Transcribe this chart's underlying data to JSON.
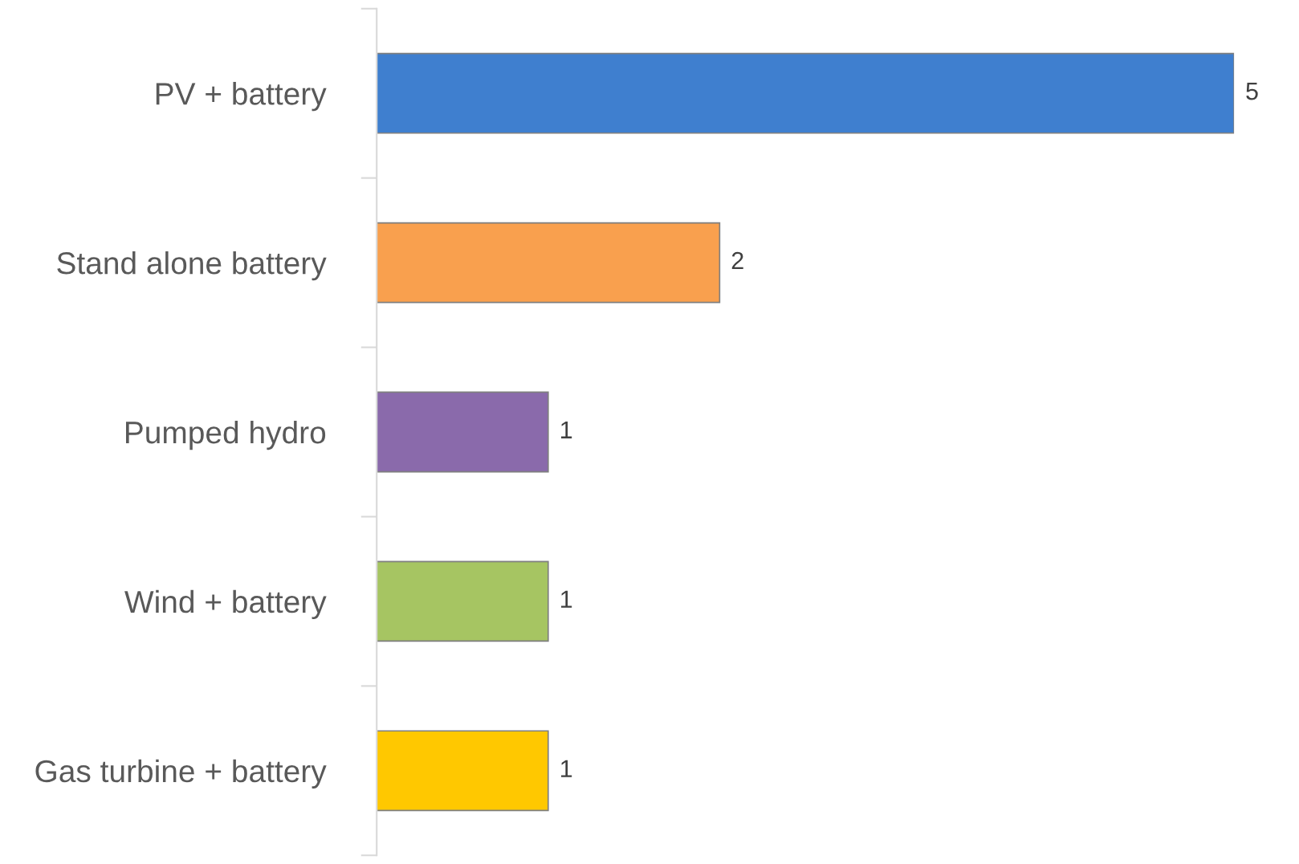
{
  "chart_data": {
    "type": "bar",
    "orientation": "horizontal",
    "categories": [
      "PV + battery",
      "Stand alone battery",
      "Pumped hydro",
      "Wind + battery",
      "Gas turbine + battery"
    ],
    "values": [
      5,
      2,
      1,
      1,
      1
    ],
    "colors": [
      "#3f7fcf",
      "#f9a04e",
      "#8a6aab",
      "#a6c562",
      "#ffc800"
    ],
    "data_labels": true,
    "grid": false,
    "legend": false
  }
}
